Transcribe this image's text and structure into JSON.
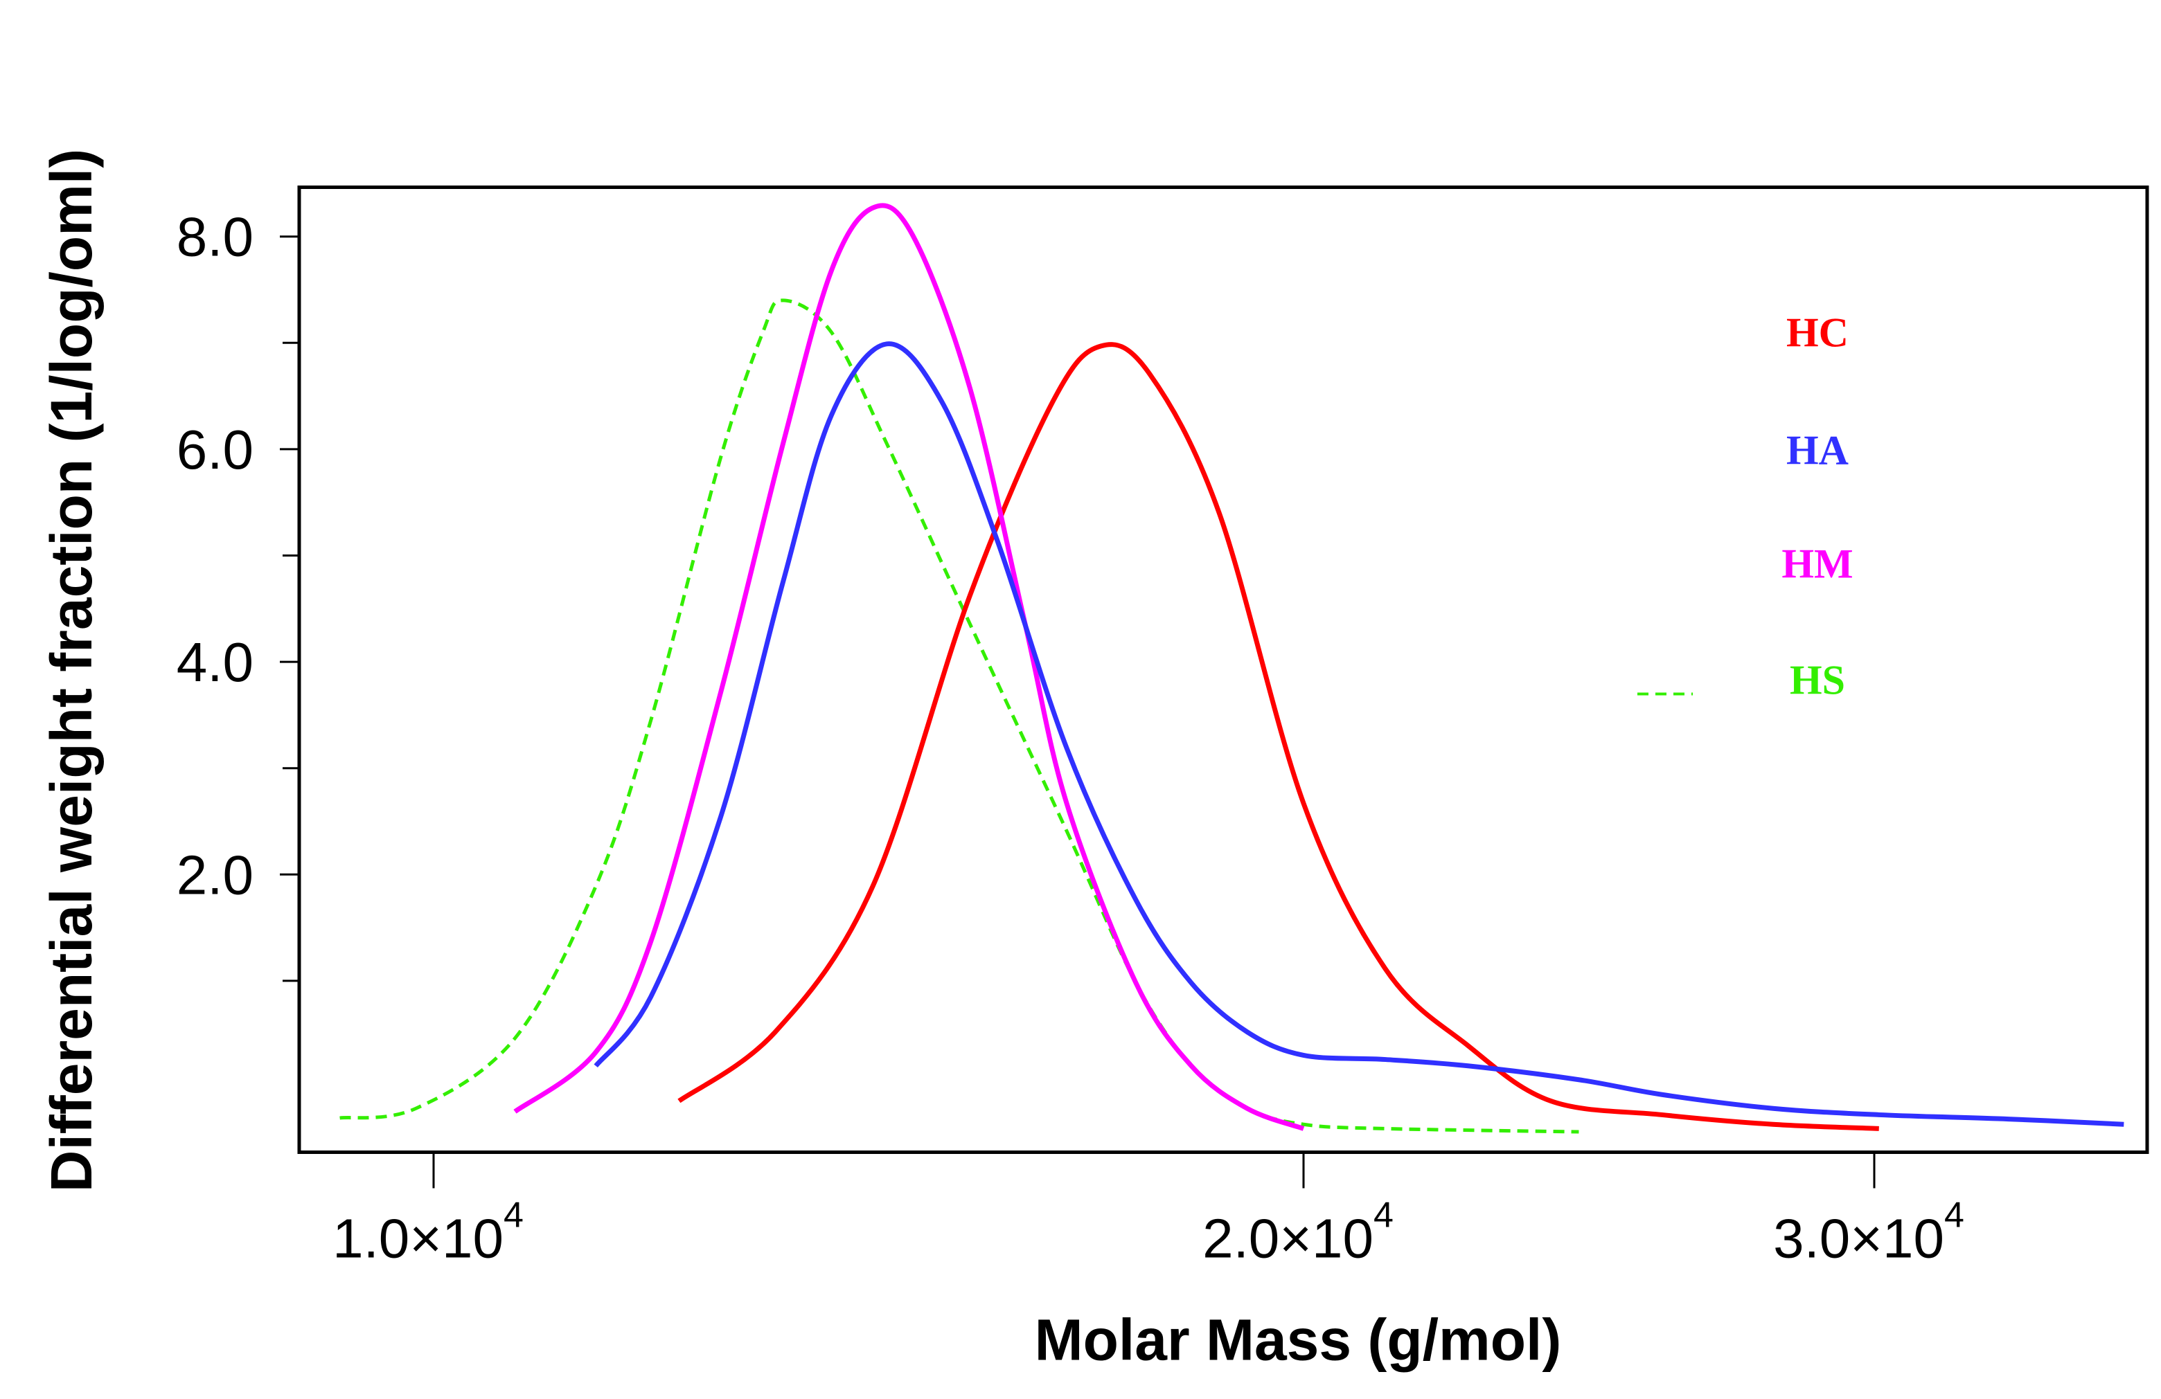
{
  "chart_data": {
    "type": "line",
    "title": "",
    "xlabel": "Molar Mass (g/mol)",
    "ylabel": "Differential weight fraction (1/log/oml)",
    "xscale": "log",
    "xlim": [
      8600,
      37000
    ],
    "ylim": [
      -0.6,
      8.6
    ],
    "grid": false,
    "legend_placement": "right",
    "x_ticks": [
      {
        "value": 10000,
        "mantissa": "1.0×10",
        "exponent": "4"
      },
      {
        "value": 20000,
        "mantissa": "2.0×10",
        "exponent": "4"
      },
      {
        "value": 30000,
        "mantissa": "3.0×10",
        "exponent": "4"
      }
    ],
    "y_ticks": [
      {
        "value": 2,
        "label": "2.0"
      },
      {
        "value": 4,
        "label": "4.0"
      },
      {
        "value": 6,
        "label": "6.0"
      },
      {
        "value": 8,
        "label": "8.0"
      }
    ],
    "y_minor_ticks": [
      1,
      3,
      5,
      7
    ],
    "series": [
      {
        "name": "HC",
        "color": "#ff0000",
        "dashed": false,
        "x": [
          12160,
          13130,
          14190,
          15330,
          16380,
          17020,
          17690,
          18700,
          20000,
          21200,
          22480,
          23840,
          25800,
          27920,
          30100
        ],
        "y": [
          -0.13,
          0.52,
          1.89,
          4.62,
          6.45,
          6.97,
          6.71,
          5.4,
          2.67,
          1.11,
          0.39,
          -0.13,
          -0.26,
          -0.35,
          -0.39
        ]
      },
      {
        "name": "HA",
        "color": "#3030ff",
        "dashed": false,
        "x": [
          11380,
          11890,
          12570,
          13210,
          13730,
          14350,
          14990,
          15670,
          16560,
          17500,
          18290,
          19120,
          20000,
          21200,
          22480,
          24320,
          25800,
          27920,
          30100,
          33000,
          35820
        ],
        "y": [
          0.2,
          0.85,
          2.54,
          4.75,
          6.32,
          6.99,
          6.45,
          5.14,
          3.19,
          1.76,
          0.98,
          0.52,
          0.3,
          0.26,
          0.2,
          0.07,
          -0.07,
          -0.2,
          -0.26,
          -0.3,
          -0.35
        ]
      },
      {
        "name": "HM",
        "color": "#ff00ff",
        "dashed": false,
        "x": [
          10670,
          11380,
          11890,
          12570,
          13210,
          13730,
          14190,
          14650,
          15330,
          16020,
          16560,
          17500,
          18290,
          19120,
          20000
        ],
        "y": [
          -0.23,
          0.33,
          1.37,
          3.71,
          6.05,
          7.68,
          8.27,
          8.01,
          6.58,
          4.36,
          2.67,
          0.98,
          0.2,
          -0.2,
          -0.39
        ]
      },
      {
        "name": "HS",
        "color": "#33ee00",
        "dashed": true,
        "x": [
          9280,
          9860,
          10670,
          11380,
          11890,
          12570,
          13000,
          13210,
          13730,
          14350,
          15330,
          16560,
          17500,
          18290,
          19120,
          20000,
          21200,
          24320
        ],
        "y": [
          -0.29,
          -0.2,
          0.46,
          1.89,
          3.45,
          5.92,
          7.1,
          7.4,
          7.1,
          6.05,
          4.36,
          2.41,
          0.98,
          0.2,
          -0.2,
          -0.35,
          -0.39,
          -0.42
        ]
      }
    ]
  }
}
